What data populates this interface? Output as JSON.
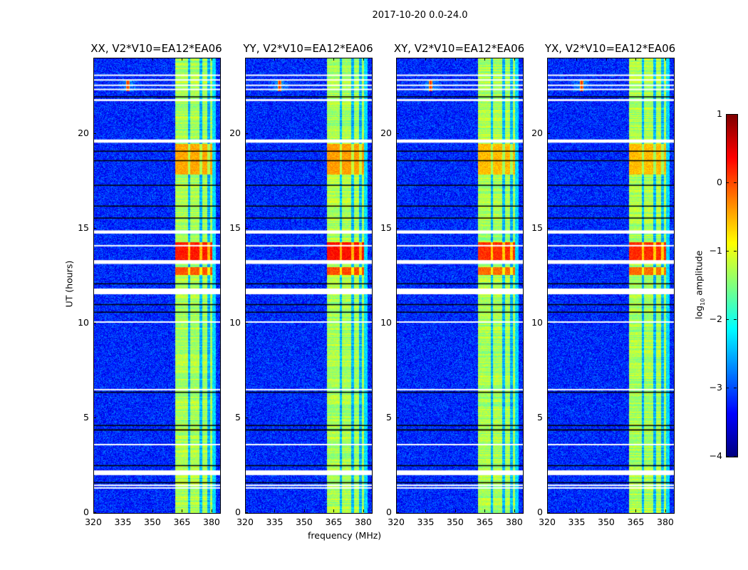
{
  "chart_data": {
    "type": "heatmap",
    "title": "2017-10-20 0.0-24.0",
    "xlabel": "frequency (MHz)",
    "ylabel": "UT (hours)",
    "xlim": [
      320,
      384
    ],
    "ylim": [
      0,
      24
    ],
    "xticks": [
      "320",
      "335",
      "350",
      "365",
      "380"
    ],
    "xtick_values": [
      320,
      335,
      350,
      365,
      380
    ],
    "yticks": [
      "0",
      "5",
      "10",
      "15",
      "20"
    ],
    "ytick_values": [
      0,
      5,
      10,
      15,
      20
    ],
    "panels": [
      {
        "title": "XX, V2*V10=EA12*EA06",
        "burst_level": 0.15
      },
      {
        "title": "YY, V2*V10=EA12*EA06",
        "burst_level": 0.2
      },
      {
        "title": "XY, V2*V10=EA12*EA06",
        "burst_level": 0.05
      },
      {
        "title": "YX, V2*V10=EA12*EA06",
        "burst_level": 0.05
      }
    ],
    "colormap": "jet",
    "colorbar": {
      "label_main": "log",
      "label_sub": "10",
      "label_rest": " amplitude",
      "range": [
        -4,
        1
      ],
      "ticks": [
        "1",
        "0",
        "−1",
        "−2",
        "−3",
        "−4"
      ],
      "tick_values": [
        1,
        0,
        -1,
        -2,
        -3,
        -4
      ]
    },
    "background_level": -3.2,
    "band": {
      "freq_range_mhz": [
        361,
        380
      ],
      "level": -1.3,
      "notches_mhz": [
        368,
        374,
        378
      ]
    },
    "rfi_spike": {
      "freq_mhz": 337,
      "time_range_h": [
        22.3,
        22.9
      ],
      "level": 0.3
    },
    "bursts": [
      {
        "time_range_h": [
          13.3,
          14.3
        ],
        "level": 0.1
      },
      {
        "time_range_h": [
          12.6,
          13.0
        ],
        "level": -0.2
      },
      {
        "time_range_h": [
          17.9,
          19.5
        ],
        "level": -0.6
      }
    ],
    "flagged_white_h": [
      [
        23.1,
        23.15
      ],
      [
        22.85,
        22.9
      ],
      [
        22.55,
        22.62
      ],
      [
        22.35,
        22.4
      ],
      [
        21.75,
        21.85
      ],
      [
        19.55,
        19.72
      ],
      [
        14.75,
        14.92
      ],
      [
        14.1,
        14.15
      ],
      [
        13.15,
        13.35
      ],
      [
        11.55,
        11.85
      ],
      [
        10.05,
        10.12
      ],
      [
        6.5,
        6.55
      ],
      [
        3.6,
        3.65
      ],
      [
        2.0,
        2.25
      ],
      [
        1.3,
        1.36
      ],
      [
        1.45,
        1.5
      ]
    ],
    "flagged_black_h": [
      [
        21.95,
        22.0
      ],
      [
        19.1,
        19.13
      ],
      [
        18.6,
        18.63
      ],
      [
        17.3,
        17.33
      ],
      [
        16.2,
        16.23
      ],
      [
        15.55,
        15.6
      ],
      [
        12.1,
        12.13
      ],
      [
        11.0,
        11.03
      ],
      [
        10.6,
        10.63
      ],
      [
        6.35,
        6.4
      ],
      [
        4.6,
        4.65
      ],
      [
        4.35,
        4.42
      ],
      [
        2.5,
        2.53
      ],
      [
        1.6,
        1.63
      ]
    ]
  }
}
